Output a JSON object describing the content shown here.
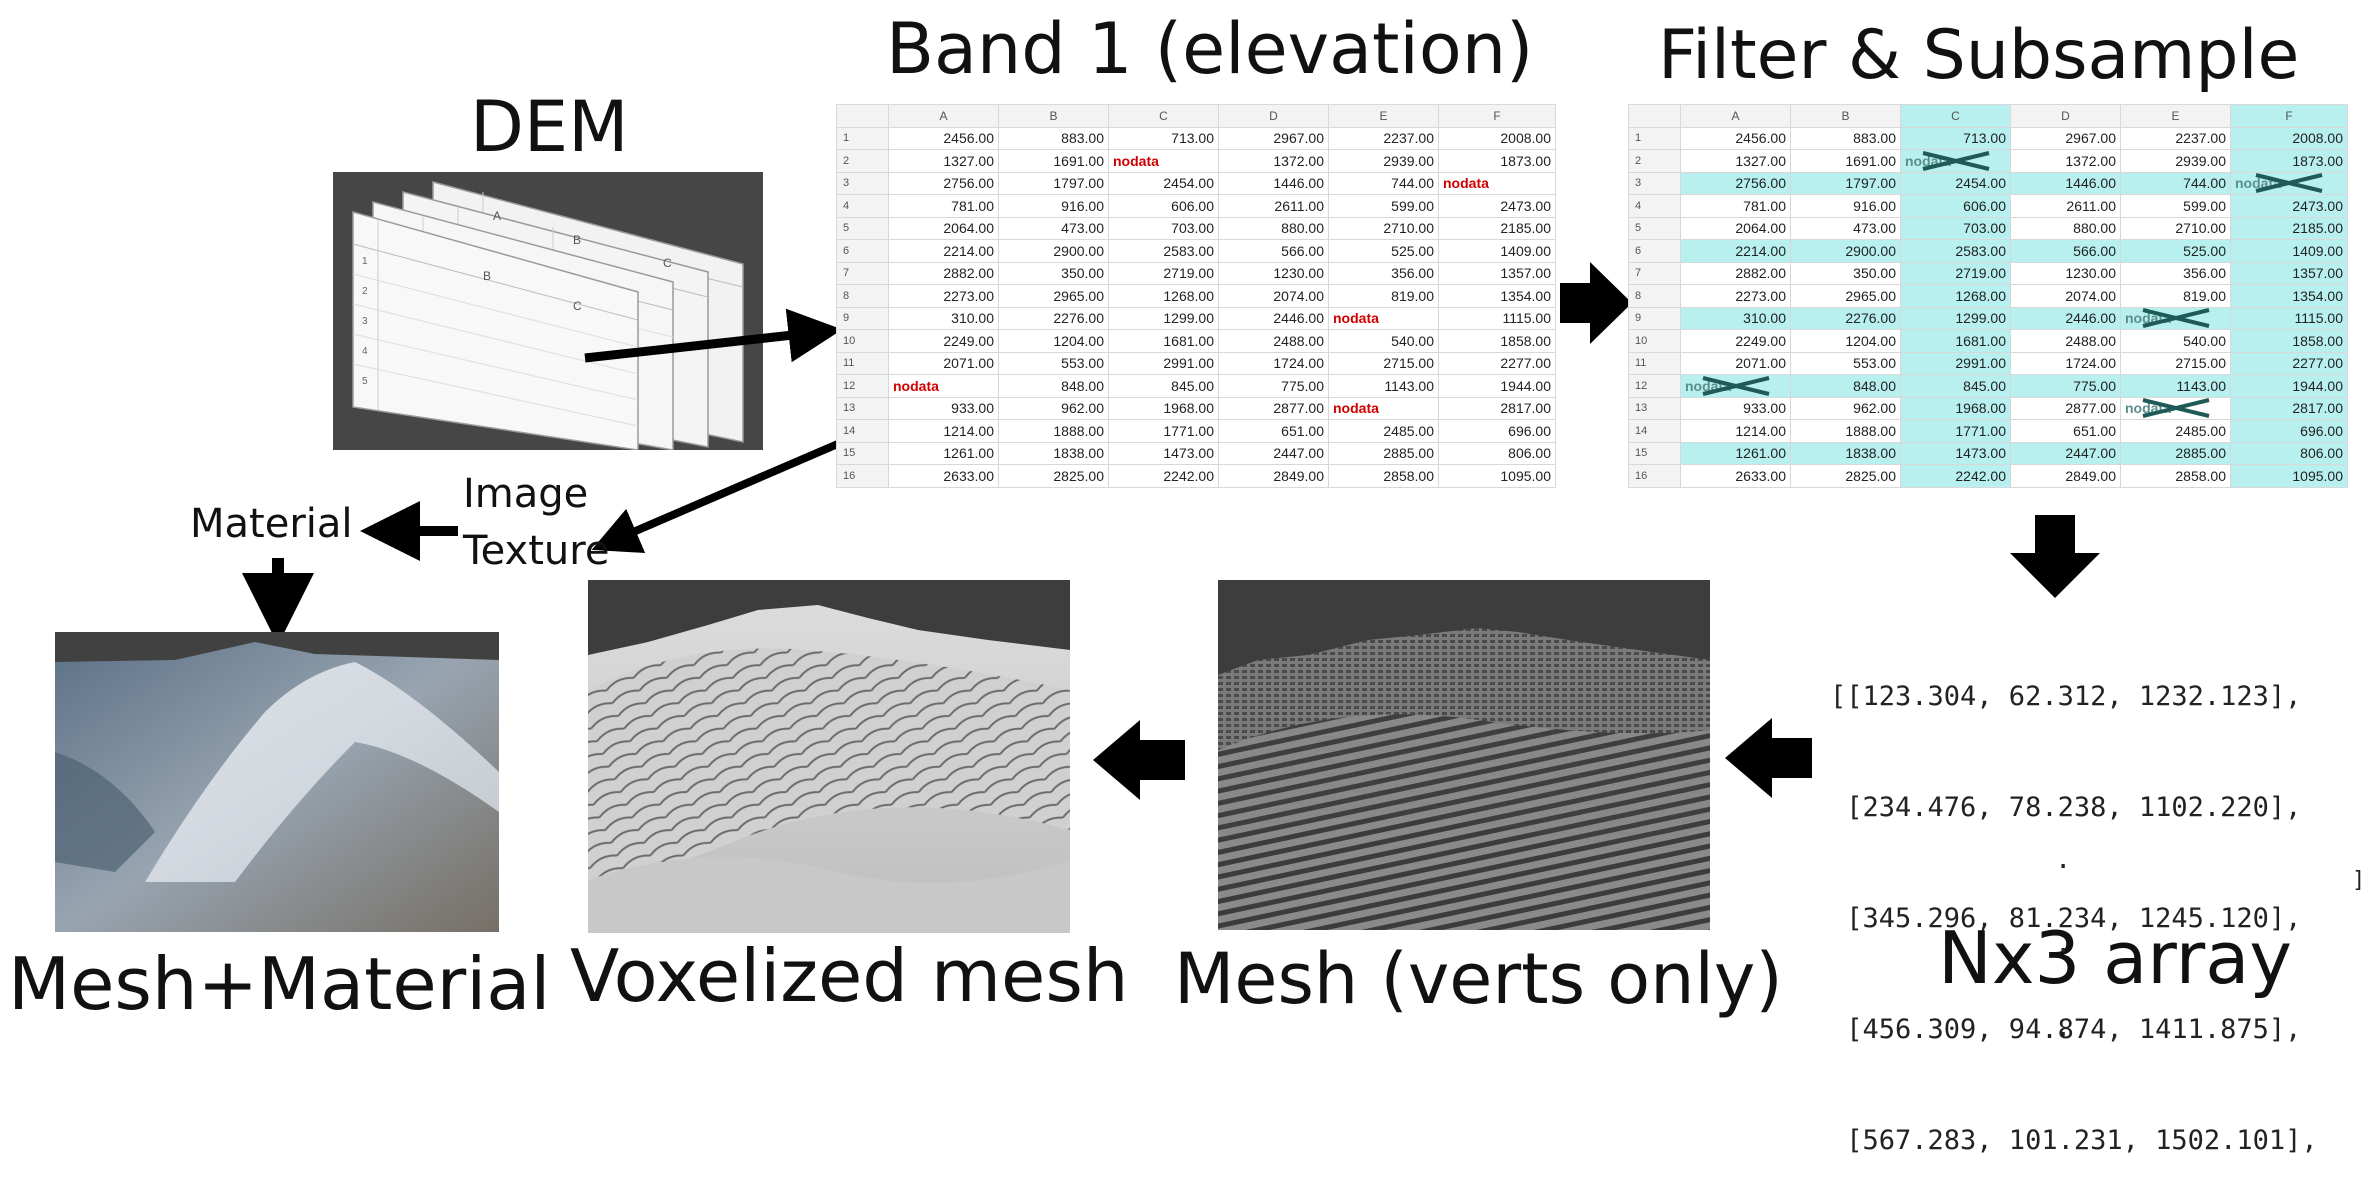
{
  "titles": {
    "dem": "DEM",
    "band1": "Band 1 (elevation)",
    "filter": "Filter & Subsample",
    "array": "Nx3 array",
    "mesh_verts": "Mesh (verts only)",
    "voxelized": "Voxelized mesh",
    "mesh_material": "Mesh+Material"
  },
  "labels": {
    "image": "Image",
    "texture": "Texture",
    "material": "Material"
  },
  "dem_stack": {
    "col_letters": [
      "A",
      "B",
      "C"
    ],
    "row_numbers": [
      "1",
      "2",
      "3",
      "4",
      "5"
    ]
  },
  "sheet": {
    "columns": [
      "A",
      "B",
      "C",
      "D",
      "E",
      "F"
    ],
    "rows": [
      [
        "1",
        "2456.00",
        "883.00",
        "713.00",
        "2967.00",
        "2237.00",
        "2008.00"
      ],
      [
        "2",
        "1327.00",
        "1691.00",
        "nodata",
        "1372.00",
        "2939.00",
        "1873.00"
      ],
      [
        "3",
        "2756.00",
        "1797.00",
        "2454.00",
        "1446.00",
        "744.00",
        "nodata"
      ],
      [
        "4",
        "781.00",
        "916.00",
        "606.00",
        "2611.00",
        "599.00",
        "2473.00"
      ],
      [
        "5",
        "2064.00",
        "473.00",
        "703.00",
        "880.00",
        "2710.00",
        "2185.00"
      ],
      [
        "6",
        "2214.00",
        "2900.00",
        "2583.00",
        "566.00",
        "525.00",
        "1409.00"
      ],
      [
        "7",
        "2882.00",
        "350.00",
        "2719.00",
        "1230.00",
        "356.00",
        "1357.00"
      ],
      [
        "8",
        "2273.00",
        "2965.00",
        "1268.00",
        "2074.00",
        "819.00",
        "1354.00"
      ],
      [
        "9",
        "310.00",
        "2276.00",
        "1299.00",
        "2446.00",
        "nodata",
        "1115.00"
      ],
      [
        "10",
        "2249.00",
        "1204.00",
        "1681.00",
        "2488.00",
        "540.00",
        "1858.00"
      ],
      [
        "11",
        "2071.00",
        "553.00",
        "2991.00",
        "1724.00",
        "2715.00",
        "2277.00"
      ],
      [
        "12",
        "nodata",
        "848.00",
        "845.00",
        "775.00",
        "1143.00",
        "1944.00"
      ],
      [
        "13",
        "933.00",
        "962.00",
        "1968.00",
        "2877.00",
        "nodata",
        "2817.00"
      ],
      [
        "14",
        "1214.00",
        "1888.00",
        "1771.00",
        "651.00",
        "2485.00",
        "696.00"
      ],
      [
        "15",
        "1261.00",
        "1838.00",
        "1473.00",
        "2447.00",
        "2885.00",
        "806.00"
      ],
      [
        "16",
        "2633.00",
        "2825.00",
        "2242.00",
        "2849.00",
        "2858.00",
        "1095.00"
      ]
    ],
    "highlight_rows": [
      3,
      6,
      9,
      12,
      15
    ],
    "highlight_cols": [
      "C",
      "F"
    ],
    "nodata_text": "nodata"
  },
  "array_lines": [
    "[[123.304, 62.312, 1232.123],",
    " [234.476, 78.238, 1102.220],",
    " [345.296, 81.234, 1245.120],",
    " [456.309, 94.874, 1411.875],",
    " [567.283, 101.231, 1502.101],"
  ],
  "array_ellipsis": [
    ".",
    ".",
    "."
  ],
  "array_close": "]",
  "colors": {
    "highlight": "#b8f0ef",
    "nodata": "#d00000",
    "scissor": "#1e5a57",
    "render_bg": "#434343",
    "mesh_gray": "#6a6a6a"
  },
  "icons": [
    "arrow-icon",
    "scissors-icon"
  ]
}
